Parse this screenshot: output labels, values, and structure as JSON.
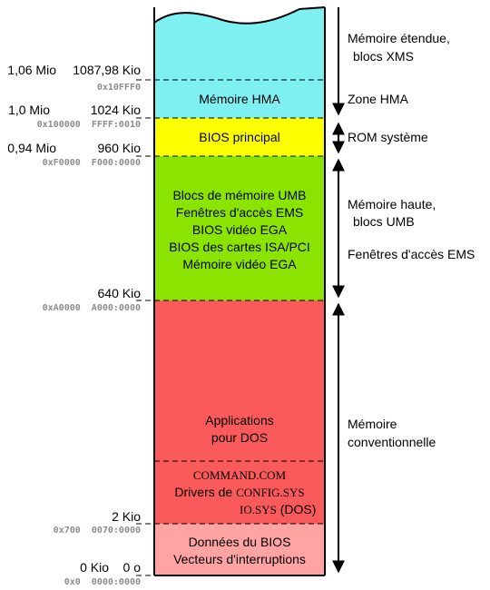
{
  "colors": {
    "xms": "#7ff0f2",
    "hma": "#7ff0f2",
    "bios": "#ffff00",
    "umb": "#8ae400",
    "conv": "#fb5a5a",
    "bios_data": "#ffa3a3"
  },
  "blocks": {
    "hma": [
      "Mémoire HMA"
    ],
    "bios": [
      "BIOS principal"
    ],
    "umb": [
      "Blocs de mémoire UMB",
      "Fenêtres d'accès EMS",
      "BIOS vidéo EGA",
      "BIOS des cartes ISA/PCI",
      "Mémoire vidéo EGA"
    ],
    "apps": [
      "Applications",
      "pour DOS"
    ],
    "command": [
      "COMMAND.COM"
    ],
    "drivers_prefix": "Drivers de ",
    "drivers_file": "CONFIG.SYS",
    "iosys_file": "IO.SYS",
    "iosys_suffix": " (DOS)",
    "bios_data": [
      "Données du BIOS",
      "Vecteurs d'interruptions"
    ]
  },
  "addresses": [
    {
      "mio": "1,06 Mio",
      "kio": "1087,98 Kio",
      "hex": "0x10FFF0"
    },
    {
      "mio": "1,0 Mio",
      "kio": "1024 Kio",
      "hex": "0x100000  FFFF:0010"
    },
    {
      "mio": "0,94 Mio",
      "kio": "960 Kio",
      "hex": "0xF0000  F000:0000"
    },
    {
      "mio": "",
      "kio": "640 Kio",
      "hex": "0xA0000  A000:0000"
    },
    {
      "mio": "",
      "kio": "2 Kio",
      "hex": "0x700  0070:0000"
    },
    {
      "mio": "0 Kio",
      "kio": "0 o",
      "hex": "0x0  0000:0000"
    }
  ],
  "ranges": {
    "xms": [
      "Mémoire étendue,",
      "blocs XMS"
    ],
    "hma": [
      "Zone HMA"
    ],
    "rom": [
      "ROM système"
    ],
    "haute": [
      "Mémoire haute,",
      "blocs UMB"
    ],
    "ems": [
      "Fenêtres d'accès EMS"
    ],
    "conv": [
      "Mémoire",
      "conventionnelle"
    ]
  }
}
